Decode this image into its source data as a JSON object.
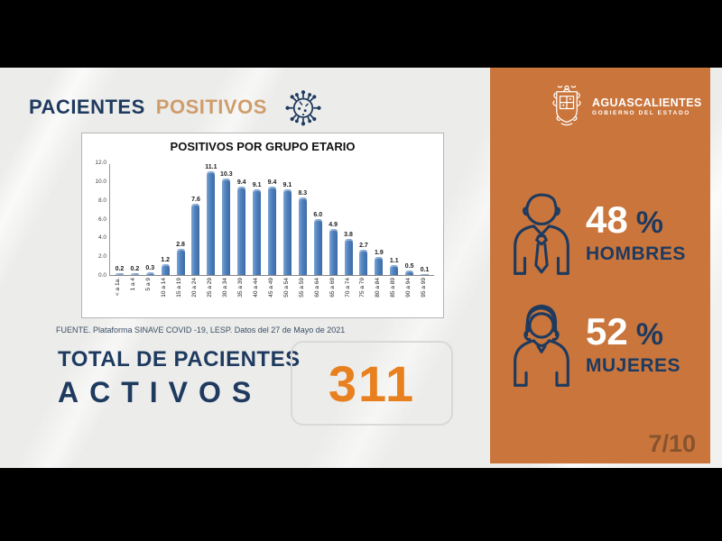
{
  "header": {
    "title_primary": "PACIENTES",
    "title_secondary": "POSITIVOS"
  },
  "chart_data": {
    "type": "bar",
    "title": "POSITIVOS POR GRUPO ETARIO",
    "categories": [
      "< a 1a.",
      "1 a 4",
      "5 a 9",
      "10 a 14",
      "15 a 19",
      "20 a 24",
      "25 a 29",
      "30 a 34",
      "35 a 39",
      "40 a 44",
      "45 a 49",
      "50 a 54",
      "55 a 59",
      "60 a 64",
      "65 a 69",
      "70 a 74",
      "75 a 79",
      "80 a 84",
      "85 a 89",
      "90 a 94",
      "95 a 99"
    ],
    "values": [
      0.2,
      0.2,
      0.3,
      1.2,
      2.8,
      7.6,
      11.1,
      10.3,
      9.4,
      9.1,
      9.4,
      9.1,
      8.3,
      6.0,
      4.9,
      3.8,
      2.7,
      1.9,
      1.1,
      0.5,
      0.1
    ],
    "xlabel": "",
    "ylabel": "",
    "ylim": [
      0,
      12
    ],
    "yticks": [
      "0.0",
      "2.0",
      "4.0",
      "6.0",
      "8.0",
      "10.0",
      "12.0"
    ],
    "grid": false,
    "legend": false,
    "bar_color": "#4f81bd"
  },
  "source_note": "FUENTE. Plataforma SINAVE COVID -19, LESP. Datos del 27 de Mayo de 2021",
  "total": {
    "line1": "TOTAL DE PACIENTES",
    "line2": "ACTIVOS",
    "value": "311"
  },
  "sidebar": {
    "logo": {
      "name": "AGUASCALIENTES",
      "subtitle": "GOBIERNO DEL ESTADO"
    },
    "stats": [
      {
        "icon": "man-icon",
        "value": "48",
        "unit": "%",
        "label": "HOMBRES"
      },
      {
        "icon": "woman-icon",
        "value": "52",
        "unit": "%",
        "label": "MUJERES"
      }
    ],
    "page_indicator": "7/10"
  },
  "colors": {
    "navy": "#1e3a5f",
    "panel_orange": "#c9753c",
    "accent_orange": "#e8801f",
    "bar_blue": "#4f81bd"
  }
}
